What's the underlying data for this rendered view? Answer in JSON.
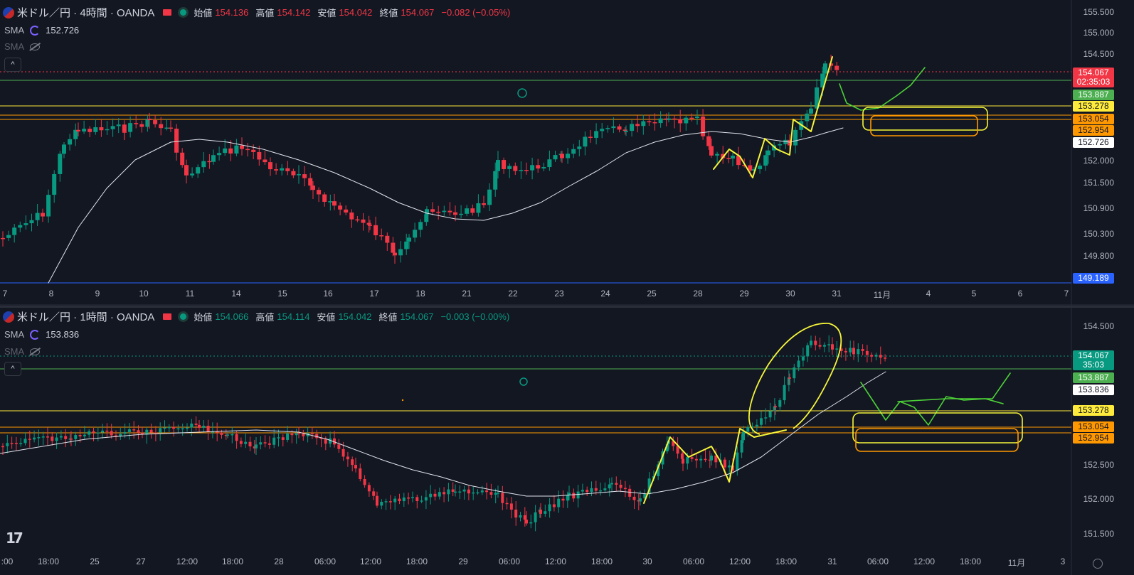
{
  "colors": {
    "bg": "#131722",
    "up": "#089981",
    "down": "#f23645",
    "sma": "#e0e3eb",
    "yellow": "#ffeb3b",
    "orange": "#ff9800",
    "green_line": "#4caf50",
    "blue_line": "#2962ff",
    "draw_yellow": "#f5f53a",
    "draw_green": "#4cd137"
  },
  "top": {
    "symbol": "米ドル／円 · 4時間 · OANDA",
    "open_label": "始値",
    "open": "154.136",
    "high_label": "高値",
    "high": "154.142",
    "low_label": "安値",
    "low": "154.042",
    "close_label": "終値",
    "close": "154.067",
    "change": "−0.082 (−0.05%)",
    "sma1_label": "SMA",
    "sma1_value": "152.726",
    "sma2_label": "SMA",
    "collapse_icon": "^",
    "price_axis": [
      "155.500",
      "155.000",
      "154.500",
      "152.000",
      "151.500",
      "150.900",
      "150.300",
      "149.800"
    ],
    "labels": {
      "last": "154.067",
      "countdown": "02:35:03",
      "green": "153.887",
      "yellow": "153.278",
      "orange1": "153.054",
      "orange2": "152.954",
      "sma": "152.726",
      "blue": "149.189"
    },
    "time_axis": [
      "7",
      "8",
      "9",
      "10",
      "11",
      "14",
      "15",
      "16",
      "17",
      "18",
      "21",
      "22",
      "23",
      "24",
      "25",
      "28",
      "29",
      "30",
      "31",
      "11月",
      "4",
      "5",
      "6",
      "7"
    ]
  },
  "bottom": {
    "symbol": "米ドル／円 · 1時間 · OANDA",
    "open_label": "始値",
    "open": "154.066",
    "high_label": "高値",
    "high": "154.114",
    "low_label": "安値",
    "low": "154.042",
    "close_label": "終値",
    "close": "154.067",
    "change": "−0.003 (−0.00%)",
    "sma1_label": "SMA",
    "sma1_value": "153.836",
    "sma2_label": "SMA",
    "collapse_icon": "^",
    "price_axis": [
      "154.500",
      "152.500",
      "152.000",
      "151.500"
    ],
    "labels": {
      "last": "154.067",
      "countdown": "35:03",
      "green": "153.887",
      "sma": "153.836",
      "yellow": "153.278",
      "orange1": "153.054",
      "orange2": "152.954"
    },
    "time_axis": [
      ":00",
      "18:00",
      "25",
      "27",
      "12:00",
      "18:00",
      "28",
      "06:00",
      "12:00",
      "18:00",
      "29",
      "06:00",
      "12:00",
      "18:00",
      "30",
      "06:00",
      "12:00",
      "18:00",
      "31",
      "06:00",
      "12:00",
      "18:00",
      "11月",
      "3"
    ]
  },
  "logo": "17"
}
